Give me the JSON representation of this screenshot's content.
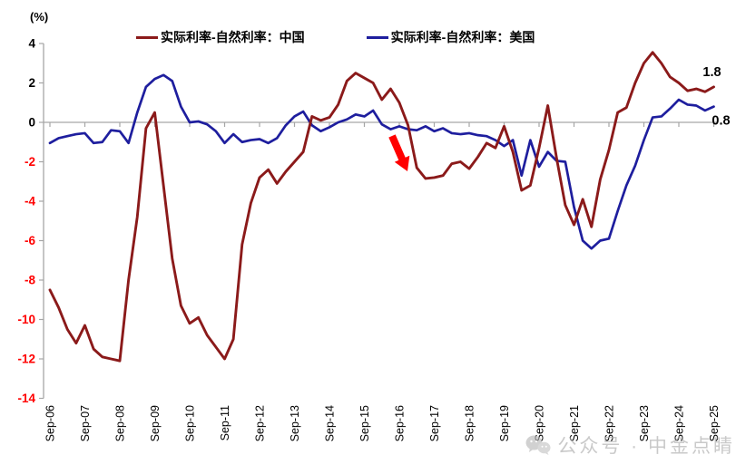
{
  "axes": {
    "y_unit": "(%)",
    "y_ticks": [
      4,
      2,
      0,
      -2,
      -4,
      -6,
      -8,
      -10,
      -12,
      -14
    ],
    "y_tick_positive_color": "#000000",
    "y_tick_negative_color": "#ff0000",
    "x_labels": [
      "Sep-06",
      "Sep-07",
      "Sep-08",
      "Sep-09",
      "Sep-10",
      "Sep-11",
      "Sep-12",
      "Sep-13",
      "Sep-14",
      "Sep-15",
      "Sep-16",
      "Sep-17",
      "Sep-18",
      "Sep-19",
      "Sep-20",
      "Sep-21",
      "Sep-22",
      "Sep-23",
      "Sep-24",
      "Sep-25"
    ]
  },
  "legend": [
    {
      "label": "实际利率-自然利率：中国",
      "color": "#8b1a1a"
    },
    {
      "label": "实际利率-自然利率：美国",
      "color": "#1e1e9e"
    }
  ],
  "annotations": {
    "end_labels": [
      {
        "series": "中国",
        "text": "1.8"
      },
      {
        "series": "美国",
        "text": "0.8"
      }
    ],
    "arrow": {
      "meaning": "down-arrow",
      "color": "#ff0000"
    }
  },
  "watermark": {
    "text": "公众号 · 中金点睛"
  },
  "chart_data": {
    "type": "line",
    "title": "",
    "xlabel": "",
    "ylabel": "(%)",
    "ylim": [
      -14,
      4
    ],
    "grid": false,
    "legend_position": "top",
    "x": [
      "Sep-06",
      "Dec-06",
      "Mar-07",
      "Jun-07",
      "Sep-07",
      "Dec-07",
      "Mar-08",
      "Jun-08",
      "Sep-08",
      "Dec-08",
      "Mar-09",
      "Jun-09",
      "Sep-09",
      "Dec-09",
      "Mar-10",
      "Jun-10",
      "Sep-10",
      "Dec-10",
      "Mar-11",
      "Jun-11",
      "Sep-11",
      "Dec-11",
      "Mar-12",
      "Jun-12",
      "Sep-12",
      "Dec-12",
      "Mar-13",
      "Jun-13",
      "Sep-13",
      "Dec-13",
      "Mar-14",
      "Jun-14",
      "Sep-14",
      "Dec-14",
      "Mar-15",
      "Jun-15",
      "Sep-15",
      "Dec-15",
      "Mar-16",
      "Jun-16",
      "Sep-16",
      "Dec-16",
      "Mar-17",
      "Jun-17",
      "Sep-17",
      "Dec-17",
      "Mar-18",
      "Jun-18",
      "Sep-18",
      "Dec-18",
      "Mar-19",
      "Jun-19",
      "Sep-19",
      "Dec-19",
      "Mar-20",
      "Jun-20",
      "Sep-20",
      "Dec-20",
      "Mar-21",
      "Jun-21",
      "Sep-21",
      "Dec-21",
      "Mar-22",
      "Jun-22",
      "Sep-22",
      "Dec-22",
      "Mar-23",
      "Jun-23",
      "Sep-23",
      "Dec-23",
      "Mar-24",
      "Jun-24",
      "Sep-24",
      "Dec-24",
      "Mar-25",
      "Jun-25",
      "Sep-25"
    ],
    "series": [
      {
        "name": "实际利率-自然利率：中国",
        "color": "#8b1a1a",
        "values": [
          -8.5,
          -9.4,
          -10.5,
          -11.2,
          -10.3,
          -11.5,
          -11.9,
          -12.0,
          -12.1,
          -8.0,
          -4.8,
          -0.3,
          0.5,
          -3.2,
          -6.9,
          -9.3,
          -10.2,
          -9.9,
          -10.8,
          -11.4,
          -12.0,
          -11.0,
          -6.2,
          -4.1,
          -2.8,
          -2.4,
          -3.1,
          -2.5,
          -2.0,
          -1.5,
          0.3,
          0.1,
          0.25,
          0.9,
          2.1,
          2.5,
          2.25,
          2.0,
          1.15,
          1.7,
          1.0,
          -0.15,
          -2.3,
          -2.85,
          -2.8,
          -2.7,
          -2.1,
          -2.0,
          -2.35,
          -1.75,
          -1.05,
          -1.3,
          -0.2,
          -1.5,
          -3.45,
          -3.2,
          -1.3,
          0.85,
          -1.8,
          -4.2,
          -5.2,
          -3.9,
          -5.3,
          -2.9,
          -1.4,
          0.5,
          0.75,
          2.0,
          3.0,
          3.55,
          3.0,
          2.3,
          2.0,
          1.6,
          1.7,
          1.55,
          1.8
        ]
      },
      {
        "name": "实际利率-自然利率：美国",
        "color": "#1e1e9e",
        "values": [
          -1.05,
          -0.8,
          -0.7,
          -0.6,
          -0.55,
          -1.05,
          -1.0,
          -0.4,
          -0.45,
          -1.05,
          0.5,
          1.8,
          2.2,
          2.4,
          2.1,
          0.8,
          0.0,
          0.05,
          -0.1,
          -0.45,
          -1.05,
          -0.6,
          -1.0,
          -0.9,
          -0.85,
          -1.05,
          -0.8,
          -0.15,
          0.3,
          0.55,
          -0.15,
          -0.45,
          -0.25,
          0.0,
          0.15,
          0.4,
          0.3,
          0.6,
          -0.1,
          -0.35,
          -0.2,
          -0.35,
          -0.4,
          -0.2,
          -0.45,
          -0.3,
          -0.55,
          -0.6,
          -0.55,
          -0.65,
          -0.7,
          -0.9,
          -1.2,
          -0.9,
          -2.7,
          -0.9,
          -2.25,
          -1.5,
          -1.95,
          -2.0,
          -4.3,
          -6.0,
          -6.4,
          -6.0,
          -5.9,
          -4.5,
          -3.2,
          -2.2,
          -0.9,
          0.25,
          0.3,
          0.7,
          1.15,
          0.9,
          0.85,
          0.6,
          0.8
        ]
      }
    ]
  }
}
